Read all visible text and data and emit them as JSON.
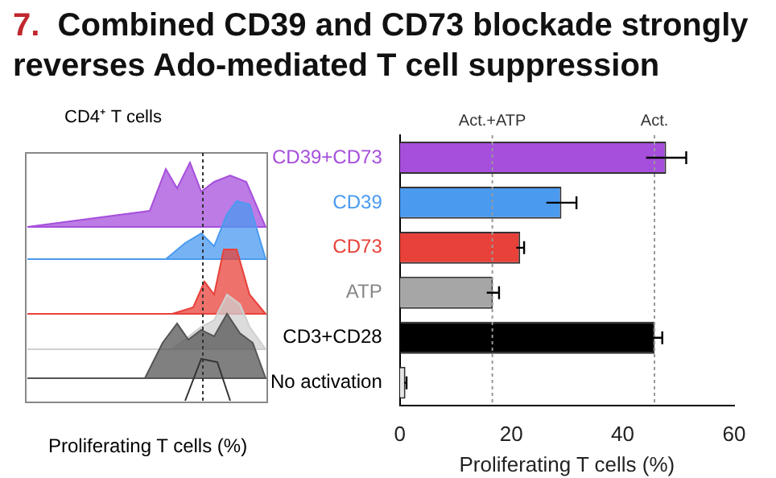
{
  "chart_data": [
    {
      "type": "other",
      "title": "CD4⁺ T cells",
      "xlabel": "Proliferating T cells (%)"
    },
    {
      "type": "bar",
      "title": "7. Combined CD39 and CD73 blockade strongly reverses Ado-mediated T cell suppression",
      "orientation": "horizontal",
      "xlabel": "Proliferating T cells (%)",
      "categories": [
        "CD39+CD73",
        "CD39",
        "CD73",
        "ATP",
        "CD3+CD28",
        "No activation"
      ],
      "values": [
        47.8,
        29.0,
        21.6,
        16.7,
        45.7,
        1.0
      ],
      "errors": [
        3.6,
        2.7,
        0.7,
        1.1,
        1.4,
        0.2
      ],
      "colors": [
        "#a64fdc",
        "#4a9af0",
        "#e8413a",
        "#a6a6a6",
        "#000000",
        "#e6e6e6"
      ],
      "xlim": [
        0,
        60
      ],
      "xticks": [
        0,
        20,
        40,
        60
      ],
      "grid": false,
      "legend": false,
      "ref_lines": [
        {
          "axis": "x",
          "value": 16.6,
          "label": "Act.+ATP",
          "color": "#999999",
          "line_style": "dotted"
        },
        {
          "axis": "x",
          "value": 45.7,
          "label": "Act.",
          "color": "#999999",
          "line_style": "dotted"
        }
      ]
    }
  ]
}
